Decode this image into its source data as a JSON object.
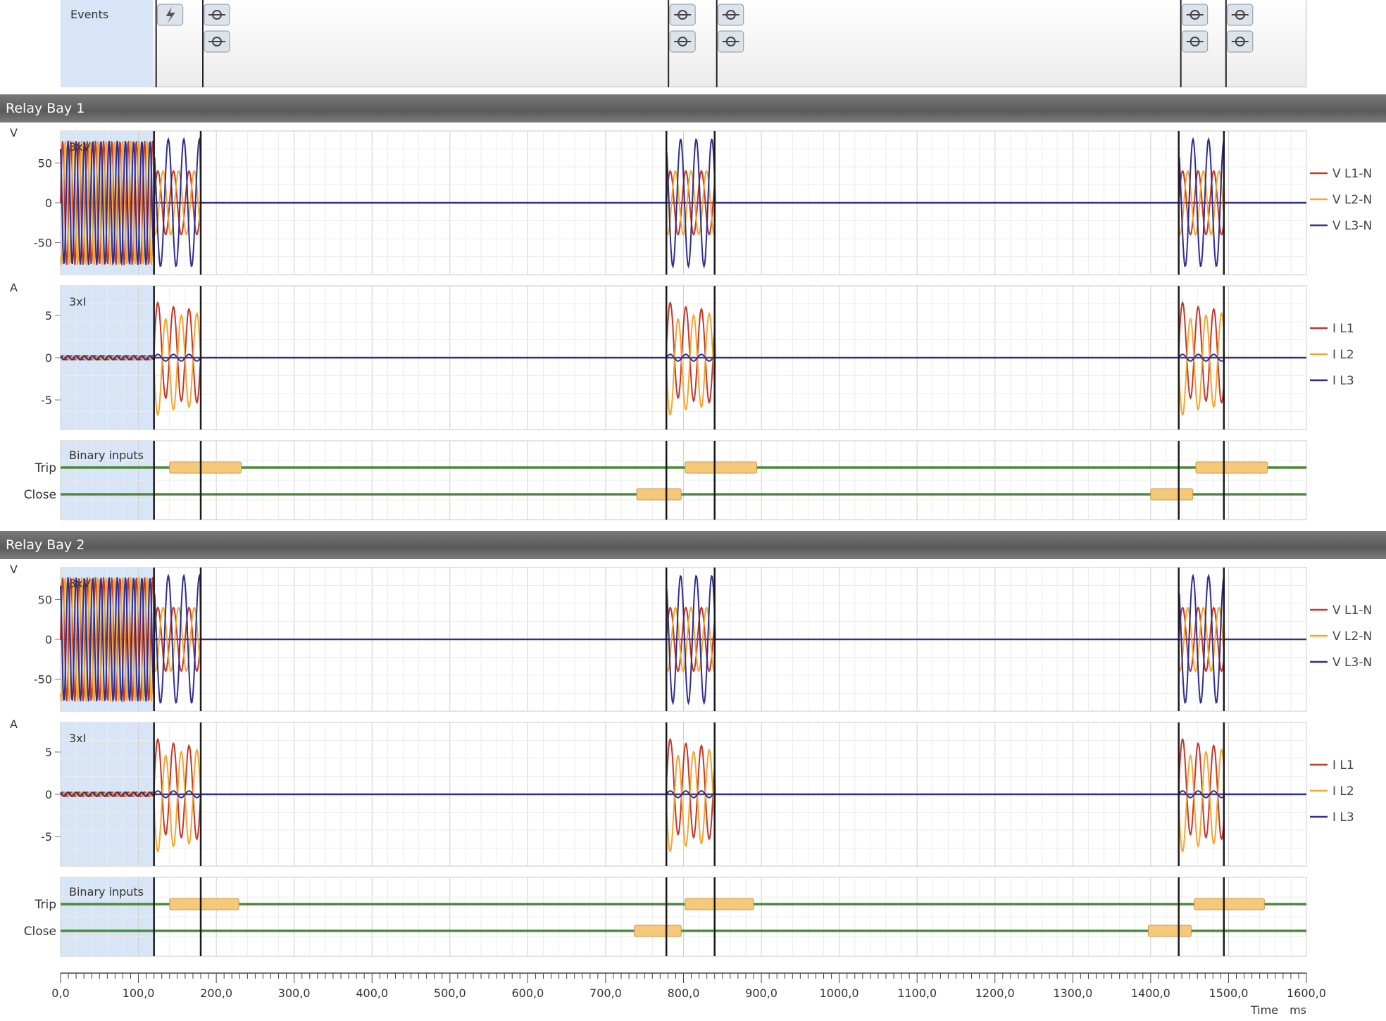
{
  "events_track": {
    "label": "Events",
    "markers": [
      {
        "t": 120,
        "icon": "lightning-icon",
        "count": 1
      },
      {
        "t": 180,
        "icon": "relay-flag-icon",
        "count": 2
      },
      {
        "t": 778,
        "icon": "relay-flag-icon",
        "count": 2
      },
      {
        "t": 840,
        "icon": "relay-flag-icon",
        "count": 2
      },
      {
        "t": 1436,
        "icon": "relay-flag-icon",
        "count": 2
      },
      {
        "t": 1494,
        "icon": "relay-flag-icon",
        "count": 2
      }
    ]
  },
  "event_lines_ms": [
    120,
    180,
    778,
    840,
    1436,
    1494
  ],
  "bays": [
    {
      "title": "Relay Bay 1",
      "voltage": {
        "unit": "V",
        "tag": "3xV",
        "ticks": [
          50,
          0,
          -50
        ],
        "legend": [
          "V L1-N",
          "V L2-N",
          "V L3-N"
        ]
      },
      "current": {
        "unit": "A",
        "tag": "3xI",
        "ticks": [
          5,
          0,
          -5
        ],
        "legend": [
          "I L1",
          "I L2",
          "I L3"
        ]
      },
      "binary": {
        "tag": "Binary inputs",
        "channels": [
          {
            "name": "Trip",
            "pulses": [
              [
                140,
                232
              ],
              [
                802,
                894
              ],
              [
                1458,
                1550
              ]
            ]
          },
          {
            "name": "Close",
            "pulses": [
              [
                740,
                797
              ],
              [
                1400,
                1454
              ]
            ]
          }
        ]
      }
    },
    {
      "title": "Relay Bay 2",
      "voltage": {
        "unit": "V",
        "tag": "3xV",
        "ticks": [
          50,
          0,
          -50
        ],
        "legend": [
          "V L1-N",
          "V L2-N",
          "V L3-N"
        ]
      },
      "current": {
        "unit": "A",
        "tag": "3xI",
        "ticks": [
          5,
          0,
          -5
        ],
        "legend": [
          "I L1",
          "I L2",
          "I L3"
        ]
      },
      "binary": {
        "tag": "Binary inputs",
        "channels": [
          {
            "name": "Trip",
            "pulses": [
              [
                140,
                229
              ],
              [
                802,
                890
              ],
              [
                1456,
                1546
              ]
            ]
          },
          {
            "name": "Close",
            "pulses": [
              [
                737,
                797
              ],
              [
                1397,
                1452
              ]
            ]
          }
        ]
      }
    }
  ],
  "time_axis": {
    "range_ms": [
      0,
      1600
    ],
    "tick_labels": [
      "0,0",
      "100,0",
      "200,0",
      "300,0",
      "400,0",
      "500,0",
      "600,0",
      "700,0",
      "800,0",
      "900,0",
      "1000,0",
      "1100,0",
      "1200,0",
      "1300,0",
      "1400,0",
      "1500,0",
      "1600,0"
    ],
    "label": "Time",
    "unit": "ms"
  },
  "colors": {
    "L1": "#c0392b",
    "L2": "#f0a830",
    "L3": "#2e2f8f",
    "binary_line": "#4c8a3c",
    "pulse_fill": "#f6c87a",
    "prefault_shade": "#d8e5f7",
    "grid": "#d8d8d8",
    "event_line": "#1a1a1a"
  }
}
